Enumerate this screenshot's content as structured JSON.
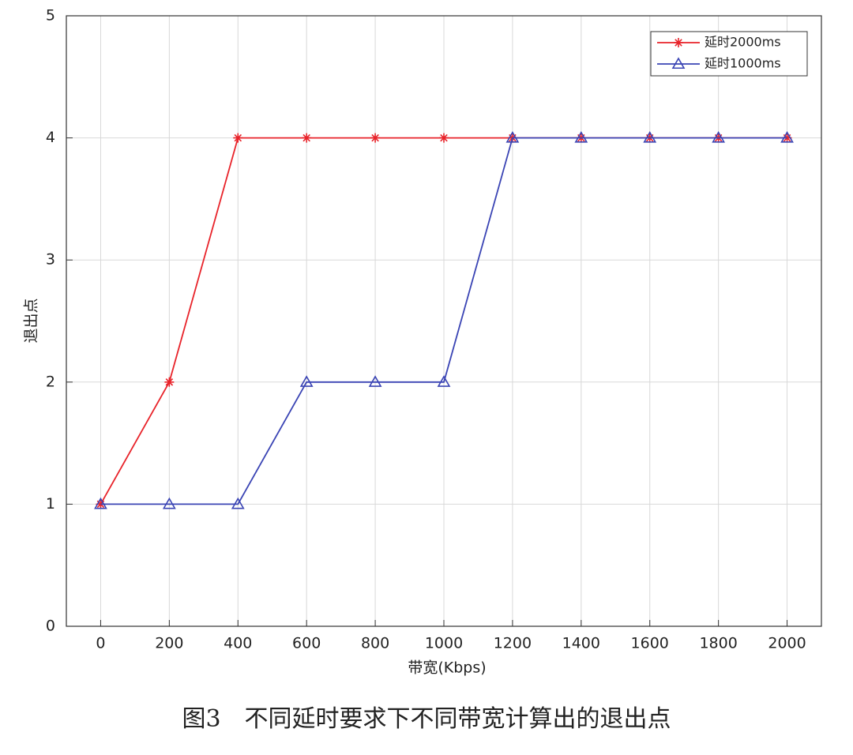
{
  "chart_data": {
    "type": "line",
    "x": [
      0,
      200,
      400,
      600,
      800,
      1000,
      1200,
      1400,
      1600,
      1800,
      2000
    ],
    "series": [
      {
        "name": "延时2000ms",
        "color": "#e8232a",
        "marker": "star",
        "values": [
          1,
          2,
          4,
          4,
          4,
          4,
          4,
          4,
          4,
          4,
          4
        ]
      },
      {
        "name": "延时1000ms",
        "color": "#3a44b4",
        "marker": "triangle",
        "values": [
          1,
          1,
          1,
          2,
          2,
          2,
          4,
          4,
          4,
          4,
          4
        ]
      }
    ],
    "xlim": [
      -100,
      2100
    ],
    "xticks": [
      0,
      200,
      400,
      600,
      800,
      1000,
      1200,
      1400,
      1600,
      1800,
      2000
    ],
    "ylim": [
      0,
      5
    ],
    "yticks": [
      0,
      1,
      2,
      3,
      4,
      5
    ],
    "xlabel": "带宽(Kbps)",
    "ylabel": "退出点",
    "caption": "图3　不同延时要求下不同带宽计算出的退出点",
    "grid": true,
    "legend": "northeast"
  }
}
